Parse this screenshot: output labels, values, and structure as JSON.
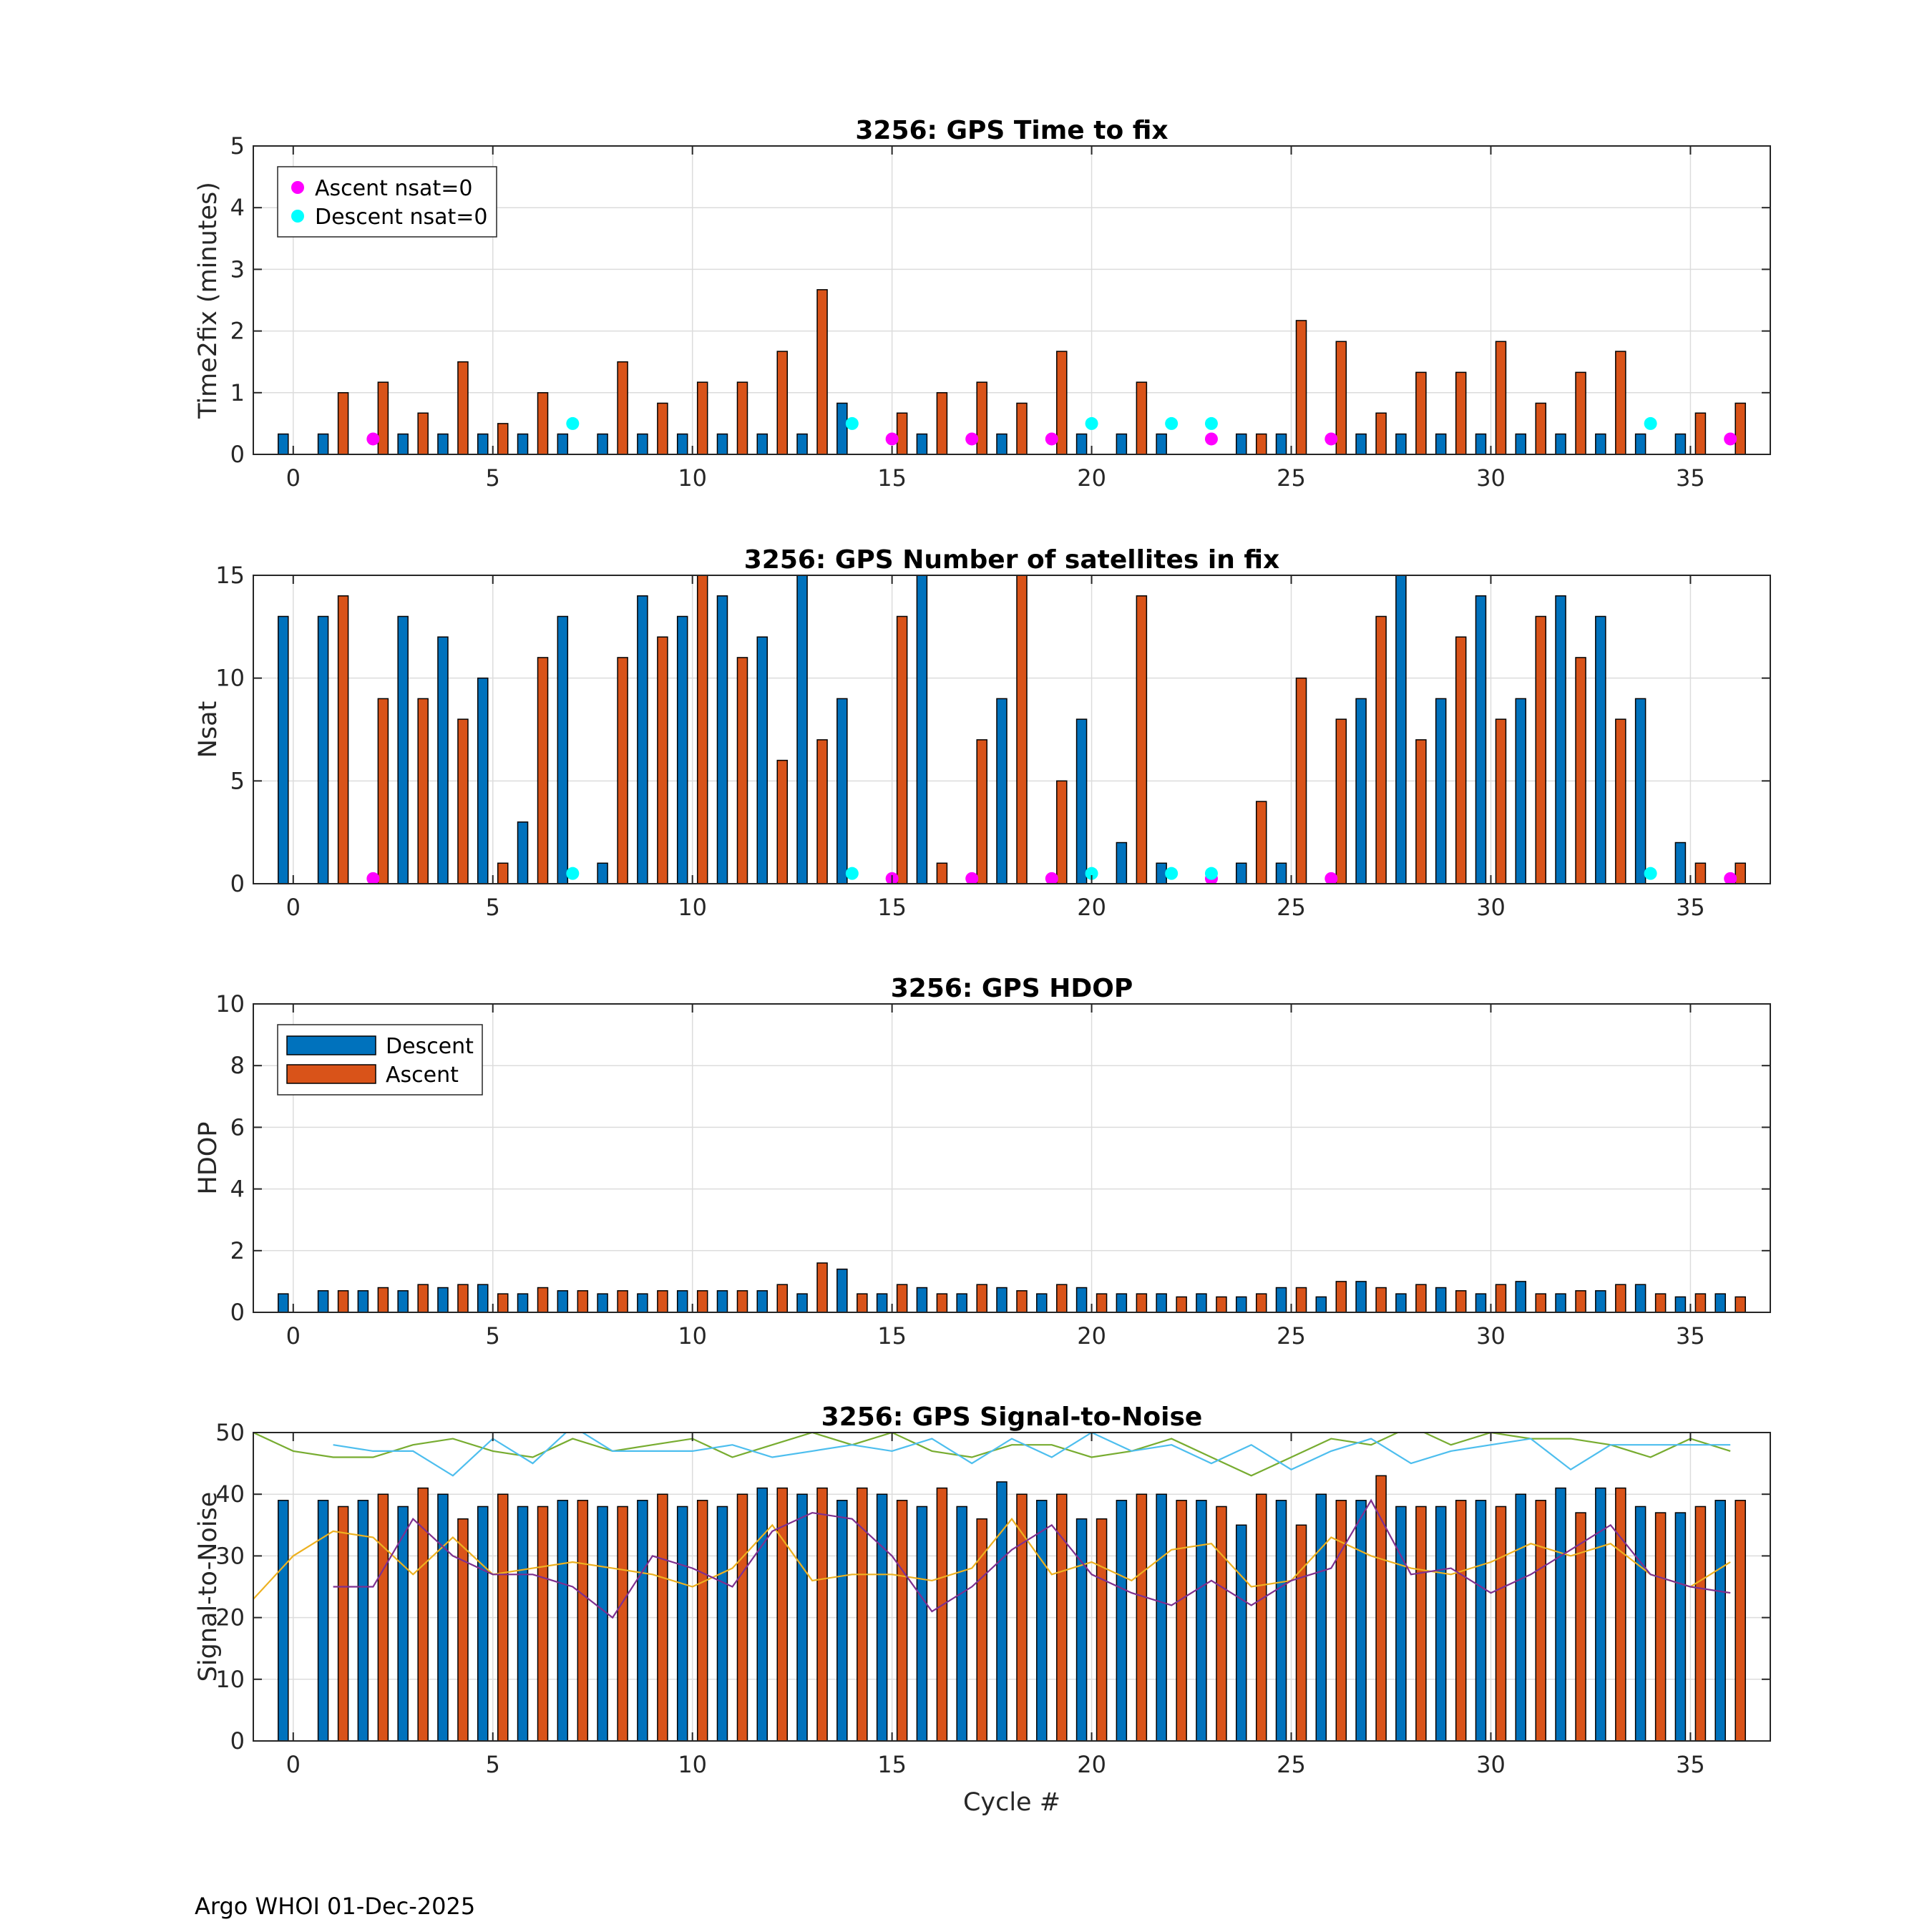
{
  "chart_data": [
    {
      "type": "bar",
      "title": "3256: GPS Time to fix",
      "ylabel": "Time2fix (minutes)",
      "xlabel": "",
      "xlim": [
        -1,
        37
      ],
      "ylim": [
        0,
        5
      ],
      "yticks": [
        0,
        1,
        2,
        3,
        4,
        5
      ],
      "xticks": [
        0,
        5,
        10,
        15,
        20,
        25,
        30,
        35
      ],
      "grid": true,
      "legend_position": "top-left",
      "legend": [
        {
          "label": "Ascent nsat=0",
          "marker": "dot",
          "color": "#FF00FF"
        },
        {
          "label": "Descent nsat=0",
          "marker": "dot",
          "color": "#00FFFF"
        }
      ],
      "series": [
        {
          "name": "Descent",
          "color": "#0072BD",
          "values": [
            0.33,
            0.33,
            0,
            0.33,
            0.33,
            0.33,
            0.33,
            0.33,
            0.33,
            0.33,
            0.33,
            0.33,
            0.33,
            0.33,
            0.83,
            0,
            0.33,
            0,
            0.33,
            0,
            0.33,
            0.33,
            0.33,
            0,
            0.33,
            0.33,
            0,
            0.33,
            0.33,
            0.33,
            0.33,
            0.33,
            0.33,
            0.33,
            0.33,
            0.33,
            0
          ]
        },
        {
          "name": "Ascent",
          "color": "#D95319",
          "values": [
            0,
            1.0,
            1.17,
            0.67,
            1.5,
            0.5,
            1.0,
            0,
            1.5,
            0.83,
            1.17,
            1.17,
            1.67,
            2.67,
            0,
            0.67,
            1.0,
            1.17,
            0.83,
            1.67,
            0,
            1.17,
            0,
            0,
            0.33,
            2.17,
            1.83,
            0.67,
            1.33,
            1.33,
            1.83,
            0.83,
            1.33,
            1.67,
            0,
            0.67,
            0.83
          ]
        }
      ],
      "markers": {
        "ascent_nsat0": {
          "x": [
            2,
            15,
            17,
            19,
            23,
            26,
            36
          ],
          "y": 0.25
        },
        "descent_nsat0": {
          "x": [
            7,
            14,
            20,
            22,
            23,
            34
          ],
          "y": 0.5
        }
      }
    },
    {
      "type": "bar",
      "title": "3256: GPS Number of satellites in fix",
      "ylabel": "Nsat",
      "xlabel": "",
      "xlim": [
        -1,
        37
      ],
      "ylim": [
        0,
        15
      ],
      "yticks": [
        0,
        5,
        10,
        15
      ],
      "xticks": [
        0,
        5,
        10,
        15,
        20,
        25,
        30,
        35
      ],
      "grid": true,
      "series": [
        {
          "name": "Descent",
          "color": "#0072BD",
          "values": [
            13,
            13,
            0,
            13,
            12,
            10,
            3,
            13,
            1,
            14,
            13,
            14,
            12,
            15,
            9,
            0,
            15,
            0,
            9,
            0,
            8,
            2,
            1,
            0,
            1,
            1,
            0,
            9,
            15,
            9,
            14,
            9,
            14,
            13,
            9,
            2,
            0
          ]
        },
        {
          "name": "Ascent",
          "color": "#D95319",
          "values": [
            0,
            14,
            9,
            9,
            8,
            1,
            11,
            0,
            11,
            12,
            15,
            11,
            6,
            7,
            0,
            13,
            1,
            7,
            15,
            5,
            0,
            14,
            0,
            0,
            4,
            10,
            8,
            13,
            7,
            12,
            8,
            13,
            11,
            8,
            0,
            1,
            1
          ]
        }
      ],
      "markers": {
        "ascent_nsat0": {
          "x": [
            2,
            15,
            17,
            19,
            23,
            26,
            36
          ],
          "y": 0.25
        },
        "descent_nsat0": {
          "x": [
            7,
            14,
            20,
            22,
            23,
            34
          ],
          "y": 0.5
        }
      }
    },
    {
      "type": "bar",
      "title": "3256: GPS HDOP",
      "ylabel": "HDOP",
      "xlabel": "",
      "xlim": [
        -1,
        37
      ],
      "ylim": [
        0,
        10
      ],
      "yticks": [
        0,
        2,
        4,
        6,
        8,
        10
      ],
      "xticks": [
        0,
        5,
        10,
        15,
        20,
        25,
        30,
        35
      ],
      "grid": true,
      "legend_position": "top-left",
      "legend": [
        {
          "label": "Descent",
          "marker": "bar",
          "color": "#0072BD"
        },
        {
          "label": "Ascent",
          "marker": "bar",
          "color": "#D95319"
        }
      ],
      "series": [
        {
          "name": "Descent",
          "color": "#0072BD",
          "values": [
            0.6,
            0.7,
            0.7,
            0.7,
            0.8,
            0.9,
            0.6,
            0.7,
            0.6,
            0.6,
            0.7,
            0.7,
            0.7,
            0.6,
            1.4,
            0.6,
            0.8,
            0.6,
            0.8,
            0.6,
            0.8,
            0.6,
            0.6,
            0.6,
            0.5,
            0.8,
            0.5,
            1.0,
            0.6,
            0.8,
            0.6,
            1.0,
            0.6,
            0.7,
            0.9,
            0.5,
            0.6
          ]
        },
        {
          "name": "Ascent",
          "color": "#D95319",
          "values": [
            0,
            0.7,
            0.8,
            0.9,
            0.9,
            0.6,
            0.8,
            0.7,
            0.7,
            0.7,
            0.7,
            0.7,
            0.9,
            1.6,
            0.6,
            0.9,
            0.6,
            0.9,
            0.7,
            0.9,
            0.6,
            0.6,
            0.5,
            0.5,
            0.6,
            0.8,
            1.0,
            0.8,
            0.9,
            0.7,
            0.9,
            0.6,
            0.7,
            0.9,
            0.6,
            0.6,
            0.5
          ]
        }
      ]
    },
    {
      "type": "bar",
      "title": "3256: GPS Signal-to-Noise",
      "ylabel": "Signal-to-Noise",
      "xlabel": "Cycle #",
      "xlim": [
        -1,
        37
      ],
      "ylim": [
        0,
        50
      ],
      "yticks": [
        0,
        10,
        20,
        30,
        40,
        50
      ],
      "xticks": [
        0,
        5,
        10,
        15,
        20,
        25,
        30,
        35
      ],
      "grid": true,
      "series": [
        {
          "name": "Descent",
          "color": "#0072BD",
          "values": [
            39,
            39,
            39,
            38,
            40,
            38,
            38,
            39,
            38,
            39,
            38,
            38,
            41,
            40,
            39,
            40,
            38,
            38,
            42,
            39,
            36,
            39,
            40,
            39,
            35,
            39,
            40,
            39,
            38,
            38,
            39,
            40,
            41,
            41,
            38,
            37,
            39
          ]
        },
        {
          "name": "Ascent",
          "color": "#D95319",
          "values": [
            0,
            38,
            40,
            41,
            36,
            40,
            38,
            39,
            38,
            40,
            39,
            40,
            41,
            41,
            41,
            39,
            41,
            36,
            40,
            40,
            36,
            40,
            39,
            38,
            40,
            35,
            39,
            43,
            38,
            39,
            38,
            39,
            37,
            41,
            37,
            38,
            39
          ]
        }
      ],
      "lines": [
        {
          "name": "max",
          "color": "#77AC30",
          "x": [
            -1,
            0,
            1,
            2,
            3,
            4,
            5,
            6,
            7,
            8,
            9,
            10,
            11,
            12,
            13,
            14,
            15,
            16,
            17,
            18,
            19,
            20,
            21,
            22,
            23,
            24,
            25,
            26,
            27,
            28,
            29,
            30,
            31,
            32,
            33,
            34,
            35,
            36
          ],
          "y": [
            50,
            47,
            46,
            46,
            48,
            49,
            47,
            46,
            49,
            47,
            48,
            49,
            46,
            48,
            50,
            48,
            50,
            47,
            46,
            48,
            48,
            46,
            47,
            49,
            46,
            43,
            46,
            49,
            48,
            51,
            48,
            50,
            49,
            49,
            48,
            46,
            49,
            47
          ]
        },
        {
          "name": "max2",
          "color": "#4DBEEE",
          "x": [
            1,
            2,
            3,
            4,
            5,
            6,
            7,
            8,
            9,
            10,
            11,
            12,
            13,
            14,
            15,
            16,
            17,
            18,
            19,
            20,
            21,
            22,
            23,
            24,
            25,
            26,
            27,
            28,
            29,
            30,
            31,
            32,
            33,
            34,
            35,
            36
          ],
          "y": [
            48,
            47,
            47,
            43,
            49,
            45,
            51,
            47,
            47,
            47,
            48,
            46,
            47,
            48,
            47,
            49,
            45,
            49,
            46,
            50,
            47,
            48,
            45,
            48,
            44,
            47,
            49,
            45,
            47,
            48,
            49,
            44,
            48,
            48,
            48,
            48
          ]
        },
        {
          "name": "mean",
          "color": "#EDB120",
          "x": [
            -1,
            0,
            1,
            2,
            3,
            4,
            5,
            6,
            7,
            8,
            9,
            10,
            11,
            12,
            13,
            14,
            15,
            16,
            17,
            18,
            19,
            20,
            21,
            22,
            23,
            24,
            25,
            26,
            27,
            28,
            29,
            30,
            31,
            32,
            33,
            34,
            35,
            36
          ],
          "y": [
            23,
            30,
            34,
            33,
            27,
            33,
            27,
            28,
            29,
            28,
            27,
            25,
            28,
            35,
            26,
            27,
            27,
            26,
            28,
            36,
            27,
            29,
            26,
            31,
            32,
            25,
            26,
            33,
            30,
            28,
            27,
            29,
            32,
            30,
            32,
            27,
            25,
            29
          ]
        },
        {
          "name": "min",
          "color": "#7E2F8E",
          "x": [
            1,
            2,
            3,
            4,
            5,
            6,
            7,
            8,
            9,
            10,
            11,
            12,
            13,
            14,
            15,
            16,
            17,
            18,
            19,
            20,
            21,
            22,
            23,
            24,
            25,
            26,
            27,
            28,
            29,
            30,
            31,
            32,
            33,
            34,
            35,
            36
          ],
          "y": [
            25,
            25,
            36,
            30,
            27,
            27,
            25,
            20,
            30,
            28,
            25,
            34,
            37,
            36,
            30,
            21,
            25,
            31,
            35,
            27,
            24,
            22,
            26,
            22,
            26,
            28,
            39,
            27,
            28,
            24,
            27,
            31,
            35,
            27,
            25,
            24
          ]
        }
      ]
    }
  ],
  "footer": {
    "text": "Argo WHOI 01-Dec-2025"
  }
}
